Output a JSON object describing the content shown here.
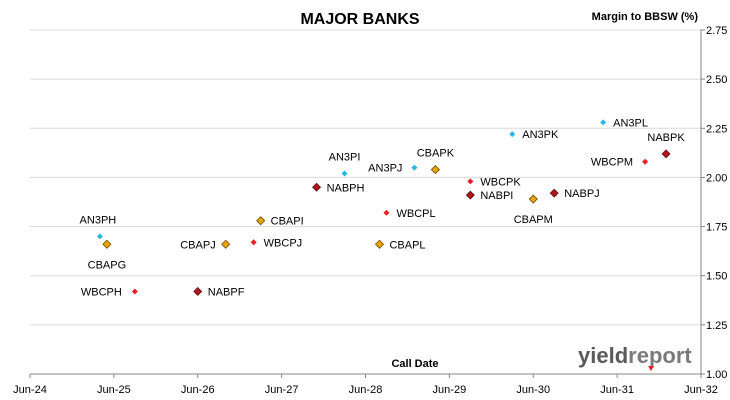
{
  "chart_data": {
    "type": "scatter",
    "title": "MAJOR BANKS",
    "ylabel": "Margin to BBSW (%)",
    "xlabel": "Call Date",
    "ylim": [
      1.0,
      2.75
    ],
    "y_ticks": [
      "1.00",
      "1.25",
      "1.50",
      "1.75",
      "2.00",
      "2.25",
      "2.50",
      "2.75"
    ],
    "x_ticks": [
      "Jun-24",
      "Jun-25",
      "Jun-26",
      "Jun-27",
      "Jun-28",
      "Jun-29",
      "Jun-30",
      "Jun-31",
      "Jun-32"
    ],
    "x_range": [
      "2024-06",
      "2032-06"
    ],
    "grid": "horizontal",
    "legend": "none",
    "colors": {
      "AN3": "#29b6e8",
      "CBA": "#e8a500",
      "WBC": "#ec1c24",
      "NAB": "#b3141c",
      "grid": "#d9d9d9",
      "axis": "#868686"
    },
    "points": [
      {
        "name": "AN3PH",
        "group": "AN3",
        "x": "2025-04",
        "y": 1.7
      },
      {
        "name": "CBAPG",
        "group": "CBA",
        "x": "2025-05",
        "y": 1.66
      },
      {
        "name": "WBCPH",
        "group": "WBC",
        "x": "2025-09",
        "y": 1.42
      },
      {
        "name": "NABPF",
        "group": "NAB",
        "x": "2026-06",
        "y": 1.42
      },
      {
        "name": "CBAPJ",
        "group": "CBA",
        "x": "2026-10",
        "y": 1.66
      },
      {
        "name": "WBCPJ",
        "group": "WBC",
        "x": "2027-02",
        "y": 1.67
      },
      {
        "name": "CBAPI",
        "group": "CBA",
        "x": "2027-03",
        "y": 1.78
      },
      {
        "name": "NABPH",
        "group": "NAB",
        "x": "2027-11",
        "y": 1.95
      },
      {
        "name": "AN3PI",
        "group": "AN3",
        "x": "2028-03",
        "y": 2.02
      },
      {
        "name": "CBAPL",
        "group": "CBA",
        "x": "2028-08",
        "y": 1.66
      },
      {
        "name": "WBCPL",
        "group": "WBC",
        "x": "2028-09",
        "y": 1.82
      },
      {
        "name": "AN3PJ",
        "group": "AN3",
        "x": "2029-01",
        "y": 2.05
      },
      {
        "name": "CBAPK",
        "group": "CBA",
        "x": "2029-04",
        "y": 2.04
      },
      {
        "name": "WBCPK",
        "group": "WBC",
        "x": "2029-09",
        "y": 1.98
      },
      {
        "name": "NABPI",
        "group": "NAB",
        "x": "2029-09",
        "y": 1.91
      },
      {
        "name": "AN3PK",
        "group": "AN3",
        "x": "2030-03",
        "y": 2.22
      },
      {
        "name": "CBAPM",
        "group": "CBA",
        "x": "2030-06",
        "y": 1.89
      },
      {
        "name": "NABPJ",
        "group": "NAB",
        "x": "2030-09",
        "y": 1.92
      },
      {
        "name": "AN3PL",
        "group": "AN3",
        "x": "2031-04",
        "y": 2.28
      },
      {
        "name": "WBCPM",
        "group": "WBC",
        "x": "2031-10",
        "y": 2.08
      },
      {
        "name": "NABPK",
        "group": "NAB",
        "x": "2032-01",
        "y": 2.12
      }
    ]
  },
  "logo": {
    "text_a": "yield",
    "text_b": "report"
  }
}
